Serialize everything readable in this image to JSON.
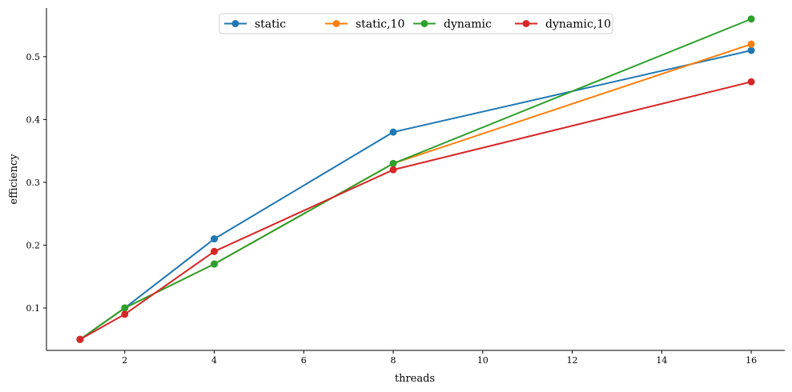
{
  "chart_data": {
    "type": "line",
    "title": "",
    "xlabel": "threads",
    "ylabel": "efficiency",
    "x": [
      1,
      2,
      4,
      8,
      16
    ],
    "xlim": [
      0.25,
      16.75
    ],
    "ylim": [
      0.0325,
      0.5775
    ],
    "xticks": [
      2,
      4,
      6,
      8,
      10,
      12,
      14,
      16
    ],
    "xtick_labels": [
      "2",
      "4",
      "6",
      "8",
      "10",
      "12",
      "14",
      "16"
    ],
    "yticks": [
      0.1,
      0.2,
      0.3,
      0.4,
      0.5
    ],
    "ytick_labels": [
      "0.1",
      "0.2",
      "0.3",
      "0.4",
      "0.5"
    ],
    "grid": false,
    "legend_position": "top-center",
    "series": [
      {
        "name": "static",
        "color": "#1f77b4",
        "values": [
          0.05,
          0.1,
          0.21,
          0.38,
          0.51
        ]
      },
      {
        "name": "static,10",
        "color": "#ff7f0e",
        "values": [
          0.05,
          0.1,
          0.17,
          0.33,
          0.52
        ]
      },
      {
        "name": "dynamic",
        "color": "#2ca02c",
        "values": [
          0.05,
          0.1,
          0.17,
          0.33,
          0.56
        ]
      },
      {
        "name": "dynamic,10",
        "color": "#d62728",
        "values": [
          0.05,
          0.09,
          0.19,
          0.32,
          0.46
        ]
      }
    ]
  }
}
